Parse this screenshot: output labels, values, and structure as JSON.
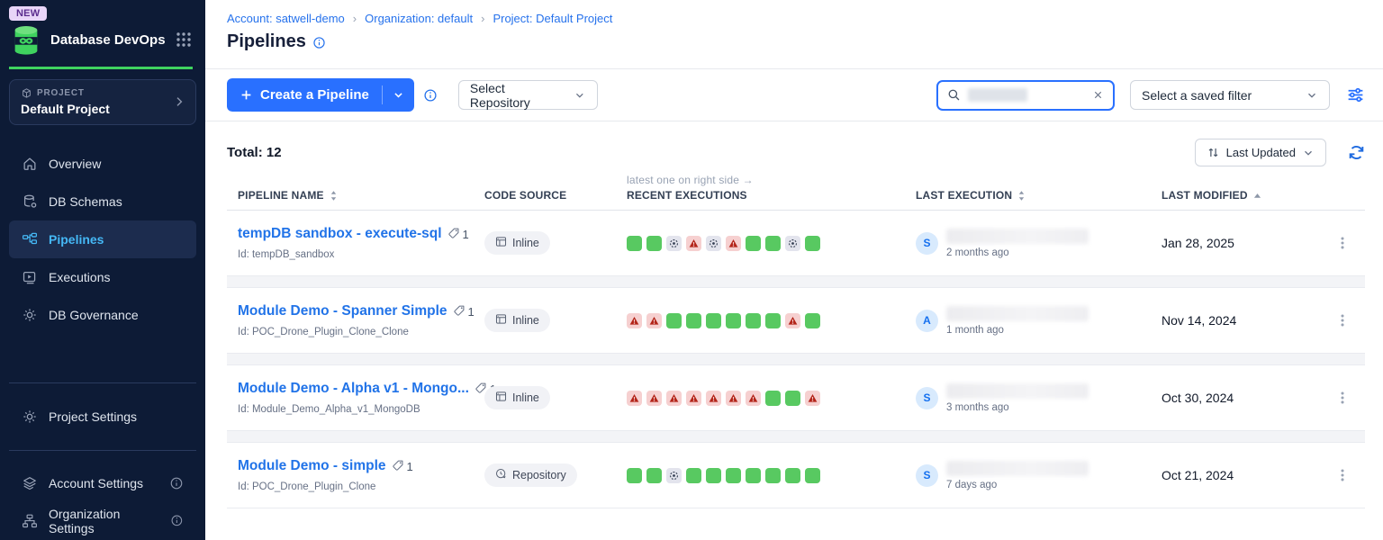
{
  "sidebar": {
    "new_badge": "NEW",
    "app_title": "Database DevOps",
    "project_label": "PROJECT",
    "project_name": "Default Project",
    "nav": [
      {
        "label": "Overview",
        "icon": "home-icon",
        "active": false
      },
      {
        "label": "DB Schemas",
        "icon": "db-schemas-icon",
        "active": false
      },
      {
        "label": "Pipelines",
        "icon": "pipelines-icon",
        "active": true
      },
      {
        "label": "Executions",
        "icon": "executions-icon",
        "active": false
      },
      {
        "label": "DB Governance",
        "icon": "governance-icon",
        "active": false
      }
    ],
    "secondary_nav": [
      {
        "label": "Project Settings",
        "icon": "gear-icon",
        "info": false
      }
    ],
    "bottom_nav": [
      {
        "label": "Account Settings",
        "icon": "account-layers-icon",
        "info": true
      },
      {
        "label": "Organization Settings",
        "icon": "org-chart-icon",
        "info": true
      }
    ]
  },
  "breadcrumb": [
    "Account: satwell-demo",
    "Organization: default",
    "Project: Default Project"
  ],
  "breadcrumb_separator": "›",
  "page": {
    "title": "Pipelines"
  },
  "toolbar": {
    "create_button": "Create a Pipeline",
    "select_repository": "Select Repository",
    "search_value": "",
    "saved_filter": "Select a saved filter"
  },
  "list_header": {
    "total_label": "Total: 12",
    "sort_by": "Last Updated"
  },
  "table": {
    "columns": [
      "PIPELINE NAME",
      "CODE SOURCE",
      "RECENT EXECUTIONS",
      "LAST EXECUTION",
      "LAST MODIFIED"
    ],
    "executions_note": "latest one on right side →",
    "rows": [
      {
        "name": "tempDB sandbox - execute-sql",
        "tag_count": "1",
        "id": "Id: tempDB_sandbox",
        "code_source": "Inline",
        "code_source_icon": "inline-icon",
        "executions": [
          "success",
          "success",
          "skipped",
          "failed",
          "skipped",
          "failed",
          "success",
          "success",
          "skipped",
          "success"
        ],
        "avatar": "S",
        "last_execution_time": "2 months ago",
        "last_modified": "Jan 28, 2025"
      },
      {
        "name": "Module Demo - Spanner Simple",
        "tag_count": "1",
        "id": "Id: POC_Drone_Plugin_Clone_Clone",
        "code_source": "Inline",
        "code_source_icon": "inline-icon",
        "executions": [
          "failed",
          "failed",
          "success",
          "success",
          "success",
          "success",
          "success",
          "success",
          "failed",
          "success"
        ],
        "avatar": "A",
        "last_execution_time": "1 month ago",
        "last_modified": "Nov 14, 2024"
      },
      {
        "name": "Module Demo - Alpha v1 - Mongo...",
        "tag_count": "1",
        "id": "Id: Module_Demo_Alpha_v1_MongoDB",
        "code_source": "Inline",
        "code_source_icon": "inline-icon",
        "executions": [
          "failed",
          "failed",
          "failed",
          "failed",
          "failed",
          "failed",
          "failed",
          "success",
          "success",
          "failed"
        ],
        "avatar": "S",
        "last_execution_time": "3 months ago",
        "last_modified": "Oct 30, 2024"
      },
      {
        "name": "Module Demo - simple",
        "tag_count": "1",
        "id": "Id: POC_Drone_Plugin_Clone",
        "code_source": "Repository",
        "code_source_icon": "repository-icon",
        "executions": [
          "success",
          "success",
          "skipped",
          "success",
          "success",
          "success",
          "success",
          "success",
          "success",
          "success"
        ],
        "avatar": "S",
        "last_execution_time": "7 days ago",
        "last_modified": "Oct 21, 2024"
      }
    ]
  },
  "colors": {
    "accent_blue": "#2970ff",
    "link_blue": "#2173e8",
    "sidebar_bg": "#0d1b36",
    "sidebar_active": "#45b8f5",
    "brand_green": "#3fd35f",
    "new_badge_bg": "#e8d5f8",
    "new_badge_text": "#5b2d8e",
    "exec_success": "#58c961",
    "exec_failed_bg": "#f6d0d0",
    "exec_failed_icon": "#b32318",
    "exec_skipped_bg": "#e3e4ed",
    "exec_skipped_icon": "#333d51",
    "avatar_bg": "#d8eafd",
    "avatar_text": "#1570ef"
  }
}
